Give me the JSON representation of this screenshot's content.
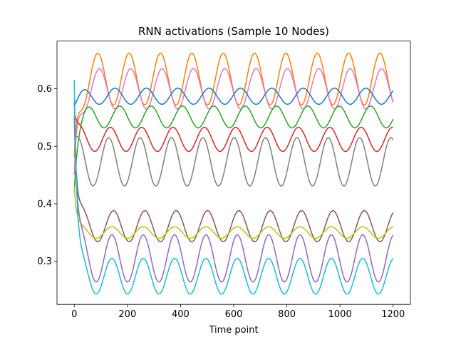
{
  "chart_data": {
    "type": "line",
    "title": "RNN activations (Sample 10 Nodes)",
    "xlabel": "Time point",
    "ylabel": "",
    "xlim": [
      -65,
      1265
    ],
    "ylim": [
      0.225,
      0.683
    ],
    "xticks": [
      0,
      200,
      400,
      600,
      800,
      1000,
      1200
    ],
    "yticks": [
      0.3,
      0.4,
      0.5,
      0.6
    ],
    "ytick_labels": [
      "0.3",
      "0.4",
      "0.5",
      "0.6"
    ],
    "grid": false,
    "legend": "none",
    "x_range": [
      0,
      1200
    ],
    "period": 118,
    "series": [
      {
        "color": "#ff7f0e",
        "start": 0.48,
        "center": 0.617,
        "amplitude": 0.045,
        "phase": 0.5,
        "settle": 12
      },
      {
        "color": "#e377c2",
        "start": 0.45,
        "center": 0.6,
        "amplitude": 0.035,
        "phase": 0.45,
        "settle": 12
      },
      {
        "color": "#1f77b4",
        "start": 0.57,
        "center": 0.587,
        "amplitude": 0.014,
        "phase": 0.95,
        "settle": 15
      },
      {
        "color": "#2ca02c",
        "start": 0.42,
        "center": 0.551,
        "amplitude": 0.019,
        "phase": 0.8,
        "settle": 12
      },
      {
        "color": "#d62728",
        "start": 0.56,
        "center": 0.512,
        "amplitude": 0.021,
        "phase": 0.1,
        "settle": 12
      },
      {
        "color": "#7f7f7f",
        "start": 0.52,
        "center": 0.473,
        "amplitude": 0.042,
        "phase": 0.15,
        "settle": 10
      },
      {
        "color": "#8c564b",
        "start": 0.55,
        "center": 0.361,
        "amplitude": 0.027,
        "phase": 0.0,
        "settle": 10
      },
      {
        "color": "#bcbd22",
        "start": 0.43,
        "center": 0.35,
        "amplitude": 0.01,
        "phase": 0.05,
        "settle": 10
      },
      {
        "color": "#9467bd",
        "start": 0.58,
        "center": 0.305,
        "amplitude": 0.041,
        "phase": 0.05,
        "settle": 10
      },
      {
        "color": "#17becf",
        "start": 0.615,
        "center": 0.274,
        "amplitude": 0.031,
        "phase": 0.05,
        "settle": 10
      }
    ]
  }
}
